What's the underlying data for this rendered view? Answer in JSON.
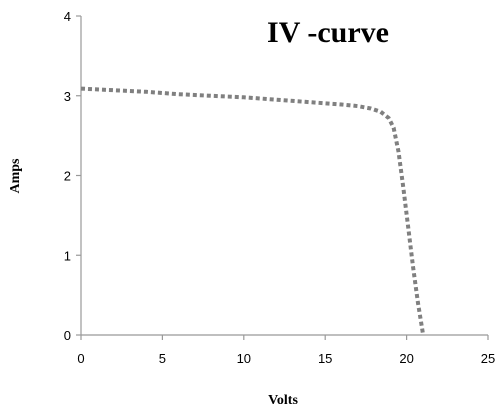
{
  "chart_data": {
    "type": "line",
    "title": "IV -curve",
    "xlabel": "Volts",
    "ylabel": "Amps",
    "xlim": [
      0,
      25
    ],
    "ylim": [
      0,
      4
    ],
    "x_ticks": [
      "0",
      "5",
      "10",
      "15",
      "20",
      "25"
    ],
    "y_ticks": [
      "0",
      "1",
      "2",
      "3",
      "4"
    ],
    "grid": false,
    "line_style": "dotted",
    "line_color": "#808080",
    "series": [
      {
        "x": [
          0,
          2,
          4,
          6,
          8,
          10,
          12,
          14,
          16,
          17,
          17.8,
          18.4,
          18.9,
          19.2,
          19.5,
          19.8,
          20.1,
          20.4,
          20.7,
          21.0
        ],
        "values": [
          3.09,
          3.07,
          3.05,
          3.02,
          3.0,
          2.98,
          2.95,
          2.92,
          2.89,
          2.87,
          2.84,
          2.8,
          2.72,
          2.6,
          2.3,
          1.85,
          1.35,
          0.85,
          0.4,
          0.02
        ]
      }
    ]
  }
}
